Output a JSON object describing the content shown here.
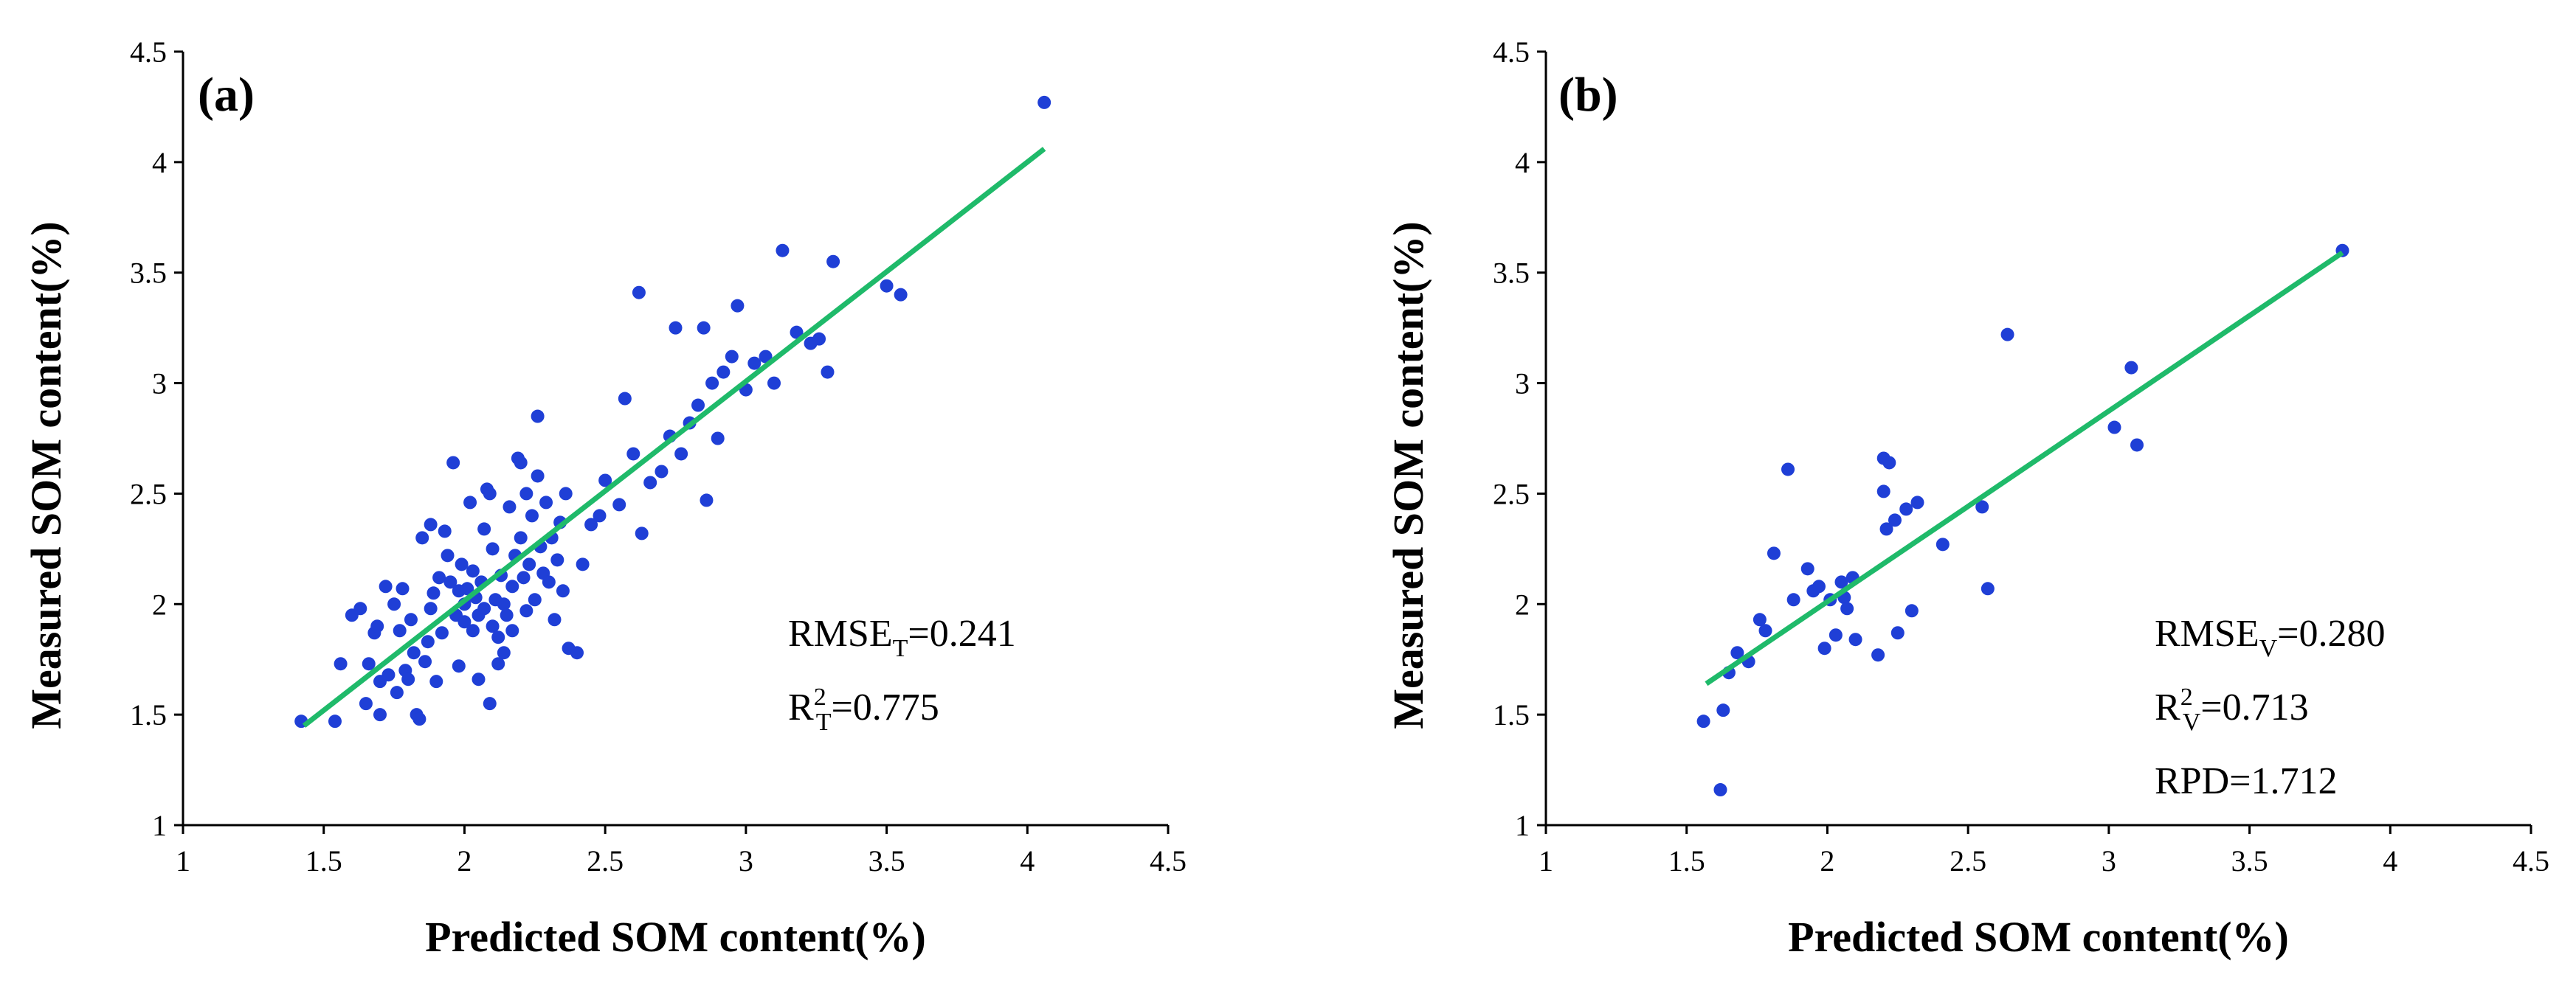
{
  "figure": {
    "panel_count": 2
  },
  "chart_data": [
    {
      "type": "scatter",
      "panel": "(a)",
      "xlabel": "Predicted SOM content(%)",
      "ylabel": "Measured SOM content(%)",
      "xlim": [
        1,
        4.5
      ],
      "ylim": [
        1,
        4.5
      ],
      "xticks": [
        "1",
        "1.5",
        "2",
        "2.5",
        "3",
        "3.5",
        "4",
        "4.5"
      ],
      "yticks": [
        "1",
        "1.5",
        "2",
        "2.5",
        "3",
        "3.5",
        "4",
        "4.5"
      ],
      "point_color": "#1f3fd6",
      "fit_color": "#1fba6a",
      "fit_line": {
        "x": [
          1.43,
          4.06
        ],
        "y": [
          1.45,
          4.06
        ]
      },
      "stats": [
        {
          "main": "RMSE",
          "sub": "T",
          "value": "=0.241"
        },
        {
          "main": "R",
          "sup": "2",
          "sub": "T",
          "value": "=0.775"
        }
      ],
      "points": [
        [
          1.42,
          1.47
        ],
        [
          1.54,
          1.47
        ],
        [
          1.56,
          1.73
        ],
        [
          1.6,
          1.95
        ],
        [
          1.63,
          1.98
        ],
        [
          1.65,
          1.55
        ],
        [
          1.66,
          1.73
        ],
        [
          1.68,
          1.87
        ],
        [
          1.69,
          1.9
        ],
        [
          1.7,
          1.5
        ],
        [
          1.7,
          1.65
        ],
        [
          1.72,
          2.08
        ],
        [
          1.73,
          1.68
        ],
        [
          1.75,
          2.0
        ],
        [
          1.76,
          1.6
        ],
        [
          1.77,
          1.88
        ],
        [
          1.78,
          2.07
        ],
        [
          1.79,
          1.7
        ],
        [
          1.8,
          1.66
        ],
        [
          1.81,
          1.93
        ],
        [
          1.82,
          1.78
        ],
        [
          1.83,
          1.5
        ],
        [
          1.84,
          1.48
        ],
        [
          1.85,
          2.3
        ],
        [
          1.86,
          1.74
        ],
        [
          1.87,
          1.83
        ],
        [
          1.88,
          2.36
        ],
        [
          1.88,
          1.98
        ],
        [
          1.89,
          2.05
        ],
        [
          1.9,
          1.65
        ],
        [
          1.91,
          2.12
        ],
        [
          1.92,
          1.87
        ],
        [
          1.93,
          2.33
        ],
        [
          1.94,
          2.22
        ],
        [
          1.95,
          2.1
        ],
        [
          1.96,
          2.64
        ],
        [
          1.97,
          1.95
        ],
        [
          1.98,
          2.06
        ],
        [
          1.98,
          1.72
        ],
        [
          1.99,
          2.18
        ],
        [
          2.0,
          2.0
        ],
        [
          2.0,
          1.92
        ],
        [
          2.01,
          2.07
        ],
        [
          2.02,
          2.46
        ],
        [
          2.03,
          2.15
        ],
        [
          2.03,
          1.88
        ],
        [
          2.04,
          2.03
        ],
        [
          2.05,
          1.95
        ],
        [
          2.05,
          1.66
        ],
        [
          2.06,
          2.1
        ],
        [
          2.07,
          1.98
        ],
        [
          2.07,
          2.34
        ],
        [
          2.08,
          2.52
        ],
        [
          2.09,
          2.5
        ],
        [
          2.09,
          1.55
        ],
        [
          2.1,
          1.9
        ],
        [
          2.1,
          2.25
        ],
        [
          2.11,
          2.02
        ],
        [
          2.12,
          1.85
        ],
        [
          2.12,
          1.73
        ],
        [
          2.13,
          2.13
        ],
        [
          2.14,
          2.0
        ],
        [
          2.14,
          1.78
        ],
        [
          2.15,
          1.95
        ],
        [
          2.16,
          2.44
        ],
        [
          2.17,
          2.08
        ],
        [
          2.17,
          1.88
        ],
        [
          2.18,
          2.22
        ],
        [
          2.19,
          2.66
        ],
        [
          2.2,
          2.64
        ],
        [
          2.2,
          2.3
        ],
        [
          2.21,
          2.12
        ],
        [
          2.22,
          2.5
        ],
        [
          2.22,
          1.97
        ],
        [
          2.23,
          2.18
        ],
        [
          2.24,
          2.4
        ],
        [
          2.25,
          2.02
        ],
        [
          2.26,
          2.85
        ],
        [
          2.26,
          2.58
        ],
        [
          2.27,
          2.26
        ],
        [
          2.28,
          2.14
        ],
        [
          2.29,
          2.46
        ],
        [
          2.3,
          2.1
        ],
        [
          2.31,
          2.3
        ],
        [
          2.32,
          1.93
        ],
        [
          2.33,
          2.2
        ],
        [
          2.34,
          2.37
        ],
        [
          2.35,
          2.06
        ],
        [
          2.36,
          2.5
        ],
        [
          2.37,
          1.8
        ],
        [
          2.4,
          1.78
        ],
        [
          2.42,
          2.18
        ],
        [
          2.45,
          2.36
        ],
        [
          2.48,
          2.4
        ],
        [
          2.5,
          2.56
        ],
        [
          2.55,
          2.45
        ],
        [
          2.57,
          2.93
        ],
        [
          2.6,
          2.68
        ],
        [
          2.62,
          3.41
        ],
        [
          2.63,
          2.32
        ],
        [
          2.66,
          2.55
        ],
        [
          2.7,
          2.6
        ],
        [
          2.73,
          2.76
        ],
        [
          2.75,
          3.25
        ],
        [
          2.77,
          2.68
        ],
        [
          2.8,
          2.82
        ],
        [
          2.83,
          2.9
        ],
        [
          2.85,
          3.25
        ],
        [
          2.86,
          2.47
        ],
        [
          2.88,
          3.0
        ],
        [
          2.9,
          2.75
        ],
        [
          2.92,
          3.05
        ],
        [
          2.95,
          3.12
        ],
        [
          2.97,
          3.35
        ],
        [
          3.0,
          2.97
        ],
        [
          3.03,
          3.09
        ],
        [
          3.07,
          3.12
        ],
        [
          3.1,
          3.0
        ],
        [
          3.13,
          3.6
        ],
        [
          3.18,
          3.23
        ],
        [
          3.23,
          3.18
        ],
        [
          3.26,
          3.2
        ],
        [
          3.29,
          3.05
        ],
        [
          3.31,
          3.55
        ],
        [
          3.5,
          3.44
        ],
        [
          3.55,
          3.4
        ],
        [
          4.06,
          4.27
        ]
      ]
    },
    {
      "type": "scatter",
      "panel": "(b)",
      "xlabel": "Predicted SOM content(%)",
      "ylabel": "Measured SOM content(%)",
      "xlim": [
        1,
        4.5
      ],
      "ylim": [
        1,
        4.5
      ],
      "xticks": [
        "1",
        "1.5",
        "2",
        "2.5",
        "3",
        "3.5",
        "4",
        "4.5"
      ],
      "yticks": [
        "1",
        "1.5",
        "2",
        "2.5",
        "3",
        "3.5",
        "4",
        "4.5"
      ],
      "point_color": "#1f3fd6",
      "fit_color": "#1fba6a",
      "fit_line": {
        "x": [
          1.57,
          3.83
        ],
        "y": [
          1.64,
          3.59
        ]
      },
      "stats": [
        {
          "main": "RMSE",
          "sub": "V",
          "value": "=0.280"
        },
        {
          "main": "R",
          "sup": "2",
          "sub": "V",
          "value": "=0.713"
        },
        {
          "main": "RPD",
          "value": "=1.712"
        }
      ],
      "points": [
        [
          1.56,
          1.47
        ],
        [
          1.62,
          1.16
        ],
        [
          1.63,
          1.52
        ],
        [
          1.65,
          1.69
        ],
        [
          1.68,
          1.78
        ],
        [
          1.72,
          1.74
        ],
        [
          1.76,
          1.93
        ],
        [
          1.78,
          1.88
        ],
        [
          1.81,
          2.23
        ],
        [
          1.86,
          2.61
        ],
        [
          1.88,
          2.02
        ],
        [
          1.93,
          2.16
        ],
        [
          1.95,
          2.06
        ],
        [
          1.97,
          2.08
        ],
        [
          1.99,
          1.8
        ],
        [
          2.01,
          2.02
        ],
        [
          2.03,
          1.86
        ],
        [
          2.05,
          2.1
        ],
        [
          2.06,
          2.03
        ],
        [
          2.07,
          1.98
        ],
        [
          2.09,
          2.12
        ],
        [
          2.1,
          1.84
        ],
        [
          2.18,
          1.77
        ],
        [
          2.2,
          2.51
        ],
        [
          2.2,
          2.66
        ],
        [
          2.21,
          2.34
        ],
        [
          2.22,
          2.64
        ],
        [
          2.24,
          2.38
        ],
        [
          2.25,
          1.87
        ],
        [
          2.28,
          2.43
        ],
        [
          2.3,
          1.97
        ],
        [
          2.32,
          2.46
        ],
        [
          2.41,
          2.27
        ],
        [
          2.55,
          2.44
        ],
        [
          2.57,
          2.07
        ],
        [
          2.64,
          3.22
        ],
        [
          3.02,
          2.8
        ],
        [
          3.08,
          3.07
        ],
        [
          3.1,
          2.72
        ],
        [
          3.83,
          3.6
        ]
      ]
    }
  ]
}
